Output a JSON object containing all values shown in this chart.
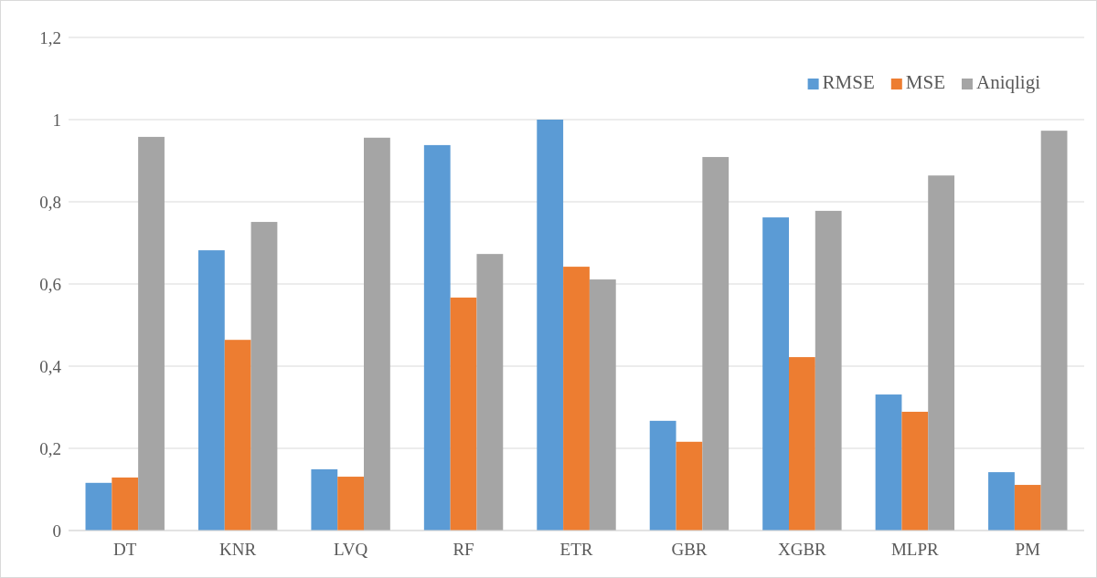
{
  "chart_data": {
    "type": "bar",
    "categories": [
      "DT",
      "KNR",
      "LVQ",
      "RF",
      "ETR",
      "GBR",
      "XGBR",
      "MLPR",
      "PM"
    ],
    "series": [
      {
        "name": "RMSE",
        "color": "#5b9bd5",
        "values": [
          0.116,
          0.682,
          0.149,
          0.938,
          1.0,
          0.267,
          0.762,
          0.331,
          0.142
        ]
      },
      {
        "name": "MSE",
        "color": "#ed7d31",
        "values": [
          0.129,
          0.464,
          0.131,
          0.567,
          0.642,
          0.216,
          0.422,
          0.289,
          0.111
        ]
      },
      {
        "name": "Aniqligi",
        "color": "#a5a5a5",
        "values": [
          0.958,
          0.751,
          0.956,
          0.673,
          0.611,
          0.909,
          0.778,
          0.864,
          0.973
        ]
      }
    ],
    "ylim": [
      0,
      1.2
    ],
    "yticks": [
      0,
      {
        "value": 0.2,
        "label": "0,2"
      },
      {
        "value": 0.4,
        "label": "0,4"
      },
      {
        "value": 0.6,
        "label": "0,6"
      },
      {
        "value": 0.8,
        "label": "0,8"
      },
      1,
      {
        "value": 1.2,
        "label": "1,2"
      }
    ],
    "grid": "y",
    "legend": "top right"
  }
}
